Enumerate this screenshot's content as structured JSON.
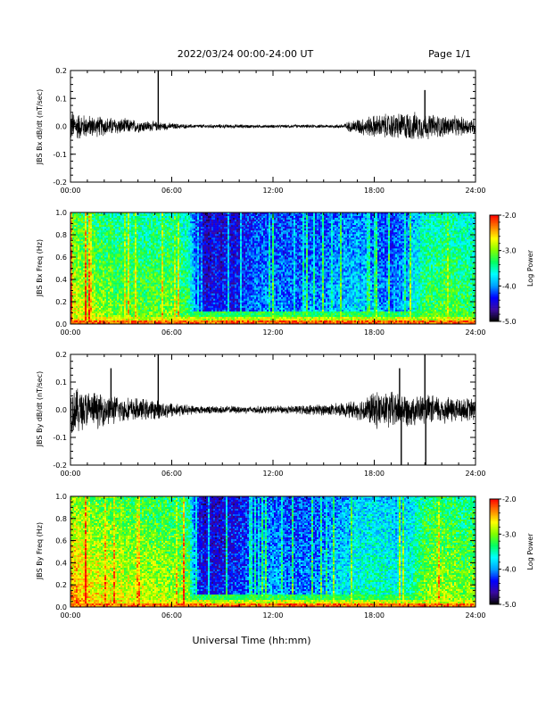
{
  "header": {
    "title": "2022/03/24  00:00-24:00 UT",
    "page": "Page 1/1"
  },
  "xlabel": "Universal Time (hh:mm)",
  "colorbar": {
    "label": "Log Power",
    "ticks": [
      "-2.0",
      "-3.0",
      "-4.0",
      "-5.0"
    ],
    "range": [
      -5.0,
      -2.0
    ],
    "colormap": [
      "#000000",
      "#3a0aa0",
      "#0000ff",
      "#00a0ff",
      "#00ffff",
      "#00ff60",
      "#80ff00",
      "#ffff00",
      "#ff8000",
      "#ff0000"
    ]
  },
  "chart_data": [
    {
      "type": "line",
      "ylabel": "JBS Bx dB/dt (nT/sec)",
      "x_ticks": [
        "00:00",
        "06:00",
        "12:00",
        "18:00",
        "24:00"
      ],
      "y_ticks": [
        "0.2",
        "0.1",
        "0.0",
        "-0.1",
        "-0.2"
      ],
      "xlim": [
        0,
        24
      ],
      "ylim": [
        -0.2,
        0.2
      ],
      "envelope": {
        "hours": [
          0,
          1,
          2,
          3,
          4,
          5,
          6,
          7,
          8,
          9,
          10,
          11,
          12,
          13,
          14,
          15,
          16,
          17,
          18,
          19,
          20,
          21,
          22,
          23,
          24
        ],
        "amplitude": [
          0.05,
          0.035,
          0.03,
          0.025,
          0.02,
          0.015,
          0.01,
          0.006,
          0.006,
          0.006,
          0.006,
          0.005,
          0.005,
          0.005,
          0.005,
          0.005,
          0.006,
          0.025,
          0.035,
          0.04,
          0.045,
          0.04,
          0.035,
          0.03,
          0.025
        ]
      },
      "spikes": [
        {
          "hour": 5.2,
          "value": 0.2
        },
        {
          "hour": 21.0,
          "value": 0.13
        }
      ]
    },
    {
      "type": "heatmap",
      "ylabel": "JBS Bx Freq (Hz)",
      "x_ticks": [
        "00:00",
        "06:00",
        "12:00",
        "18:00",
        "24:00"
      ],
      "y_ticks": [
        "1.0",
        "0.8",
        "0.6",
        "0.4",
        "0.2",
        "0.0"
      ],
      "xlim": [
        0,
        24
      ],
      "ylim": [
        0,
        1.0
      ],
      "activity": {
        "hours": [
          0,
          1,
          2,
          3,
          4,
          5,
          6,
          7,
          7.5,
          8,
          9,
          10,
          11,
          12,
          13,
          14,
          15,
          16,
          17,
          18,
          19,
          20,
          21,
          22,
          23,
          24
        ],
        "level": [
          0.72,
          0.65,
          0.62,
          0.6,
          0.58,
          0.58,
          0.6,
          0.52,
          0.25,
          0.18,
          0.2,
          0.22,
          0.3,
          0.32,
          0.3,
          0.3,
          0.32,
          0.35,
          0.38,
          0.32,
          0.3,
          0.35,
          0.55,
          0.58,
          0.55,
          0.52
        ]
      }
    },
    {
      "type": "line",
      "ylabel": "JBS By dB/dt (nT/sec)",
      "x_ticks": [
        "00:00",
        "06:00",
        "12:00",
        "18:00",
        "24:00"
      ],
      "y_ticks": [
        "0.2",
        "0.1",
        "0.0",
        "-0.1",
        "-0.2"
      ],
      "xlim": [
        0,
        24
      ],
      "ylim": [
        -0.2,
        0.2
      ],
      "envelope": {
        "hours": [
          0,
          1,
          2,
          3,
          4,
          5,
          6,
          7,
          8,
          9,
          10,
          11,
          12,
          13,
          14,
          15,
          16,
          17,
          18,
          19,
          20,
          21,
          22,
          23,
          24
        ],
        "amplitude": [
          0.08,
          0.06,
          0.05,
          0.04,
          0.035,
          0.03,
          0.025,
          0.015,
          0.012,
          0.012,
          0.012,
          0.012,
          0.012,
          0.013,
          0.015,
          0.018,
          0.02,
          0.03,
          0.055,
          0.06,
          0.05,
          0.045,
          0.045,
          0.04,
          0.035
        ]
      },
      "spikes": [
        {
          "hour": 5.2,
          "value": 0.2
        },
        {
          "hour": 21.0,
          "value": 0.2
        },
        {
          "hour": 19.5,
          "value": 0.15
        },
        {
          "hour": 19.6,
          "value": -0.2
        },
        {
          "hour": 21.05,
          "value": -0.2
        },
        {
          "hour": 2.4,
          "value": 0.15
        }
      ]
    },
    {
      "type": "heatmap",
      "ylabel": "JBS By Freq (Hz)",
      "x_ticks": [
        "00:00",
        "06:00",
        "12:00",
        "18:00",
        "24:00"
      ],
      "y_ticks": [
        "1.0",
        "0.8",
        "0.6",
        "0.4",
        "0.2",
        "0.0"
      ],
      "xlim": [
        0,
        24
      ],
      "ylim": [
        0,
        1.0
      ],
      "activity": {
        "hours": [
          0,
          1,
          2,
          3,
          4,
          5,
          6,
          7,
          7.5,
          8,
          9,
          10,
          11,
          12,
          13,
          14,
          15,
          16,
          17,
          18,
          19,
          20,
          21,
          22,
          23,
          24
        ],
        "level": [
          0.8,
          0.75,
          0.72,
          0.7,
          0.68,
          0.66,
          0.66,
          0.6,
          0.25,
          0.18,
          0.2,
          0.24,
          0.3,
          0.35,
          0.3,
          0.3,
          0.32,
          0.4,
          0.45,
          0.48,
          0.45,
          0.45,
          0.62,
          0.66,
          0.62,
          0.6
        ]
      }
    }
  ]
}
